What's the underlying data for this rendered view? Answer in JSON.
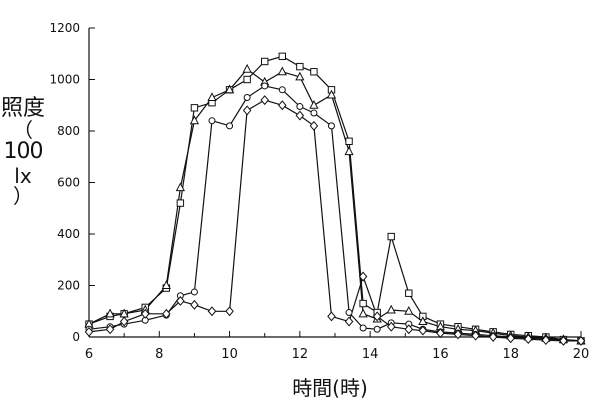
{
  "chart_data": {
    "type": "line",
    "ylabel": {
      "text": "照度",
      "paren_open": "（",
      "unit_number": "100",
      "unit": "lx",
      "paren_close": "）"
    },
    "xlabel": "時間(時)",
    "xlim": [
      6,
      20
    ],
    "ylim": [
      0,
      1200
    ],
    "xticks": [
      6,
      8,
      10,
      12,
      14,
      16,
      18,
      20
    ],
    "yticks": [
      0,
      200,
      400,
      600,
      800,
      1000,
      1200
    ],
    "grid": false,
    "series": [
      {
        "marker": "square",
        "x": [
          6,
          6.6,
          7,
          7.6,
          8.2,
          8.6,
          9,
          9.5,
          10,
          10.5,
          11,
          11.5,
          12,
          12.4,
          12.9,
          13.4,
          13.8,
          14.2,
          14.6,
          15.1,
          15.5,
          16,
          16.5,
          17,
          17.5,
          18,
          18.5,
          19,
          19.5,
          20
        ],
        "y": [
          50,
          80,
          90,
          115,
          190,
          520,
          890,
          910,
          960,
          1000,
          1070,
          1090,
          1050,
          1030,
          960,
          760,
          130,
          95,
          390,
          170,
          80,
          50,
          40,
          30,
          20,
          10,
          5,
          0,
          -10,
          -15
        ]
      },
      {
        "marker": "triangle",
        "x": [
          6,
          6.6,
          7,
          7.6,
          8.2,
          8.6,
          9,
          9.5,
          10,
          10.5,
          11,
          11.5,
          12,
          12.4,
          12.9,
          13.4,
          13.8,
          14.2,
          14.6,
          15.1,
          15.5,
          16,
          16.5,
          17,
          17.5,
          18,
          18.5,
          19,
          19.5,
          20
        ],
        "y": [
          50,
          90,
          90,
          105,
          200,
          580,
          840,
          930,
          960,
          1040,
          990,
          1030,
          1010,
          900,
          940,
          720,
          90,
          70,
          105,
          100,
          60,
          40,
          30,
          25,
          15,
          5,
          0,
          -5,
          -10,
          -15
        ]
      },
      {
        "marker": "circle",
        "x": [
          6,
          6.6,
          7,
          7.6,
          8.2,
          8.6,
          9,
          9.5,
          10,
          10.5,
          11,
          11.5,
          12,
          12.4,
          12.9,
          13.4,
          13.8,
          14.2,
          14.6,
          15.1,
          15.5,
          16,
          16.5,
          17,
          17.5,
          18,
          18.5,
          19,
          19.5,
          20
        ],
        "y": [
          30,
          40,
          50,
          65,
          85,
          160,
          175,
          840,
          820,
          930,
          975,
          960,
          895,
          870,
          820,
          95,
          35,
          30,
          55,
          50,
          30,
          20,
          15,
          10,
          5,
          0,
          -5,
          -8,
          -12,
          -15
        ]
      },
      {
        "marker": "diamond",
        "x": [
          6,
          6.6,
          7,
          7.6,
          8.2,
          8.6,
          9,
          9.5,
          10,
          10.5,
          11,
          11.5,
          12,
          12.4,
          12.9,
          13.4,
          13.8,
          14.2,
          14.6,
          15.1,
          15.5,
          16,
          16.5,
          17,
          17.5,
          18,
          18.5,
          19,
          19.5,
          20
        ],
        "y": [
          20,
          30,
          60,
          90,
          90,
          140,
          125,
          100,
          100,
          880,
          920,
          900,
          860,
          820,
          80,
          60,
          235,
          80,
          40,
          30,
          25,
          15,
          10,
          5,
          0,
          -5,
          -8,
          -12,
          -15,
          -15
        ]
      }
    ]
  }
}
